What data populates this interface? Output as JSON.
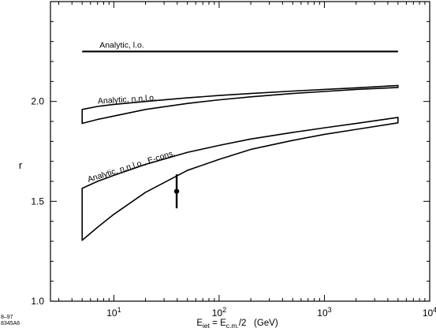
{
  "chart_data": {
    "type": "line",
    "title": "",
    "ylabel": "r",
    "xlabel": {
      "main": "E",
      "sub1": "jet",
      "mid": " = E",
      "sub2": "c.m.",
      "tail": "/2",
      "unit": "(GeV)"
    },
    "xscale": "log",
    "xlim": [
      2.5,
      10000
    ],
    "ylim": [
      1.0,
      2.5
    ],
    "grid": false,
    "x_ticks": [
      {
        "value": 10,
        "mantissa": "10",
        "exp": "1"
      },
      {
        "value": 100,
        "mantissa": "10",
        "exp": "2"
      },
      {
        "value": 1000,
        "mantissa": "10",
        "exp": "3"
      },
      {
        "value": 10000,
        "mantissa": "10",
        "exp": "4"
      }
    ],
    "y_ticks": [
      {
        "value": 1.0,
        "label": "1.0"
      },
      {
        "value": 1.5,
        "label": "1.5"
      },
      {
        "value": 2.0,
        "label": "2.0"
      }
    ],
    "series": [
      {
        "name": "Analytic, l.o.",
        "kind": "line",
        "x": [
          5,
          5000
        ],
        "y": [
          2.25,
          2.25
        ]
      },
      {
        "name": "Analytic, n.n.l.o.",
        "kind": "band",
        "x": [
          5,
          7,
          10,
          20,
          50,
          100,
          200,
          500,
          1000,
          2000,
          5000
        ],
        "y_upper": [
          1.96,
          1.975,
          1.985,
          2.0,
          2.018,
          2.03,
          2.04,
          2.052,
          2.06,
          2.068,
          2.08
        ],
        "y_lower": [
          1.89,
          1.91,
          1.927,
          1.96,
          1.99,
          2.008,
          2.023,
          2.04,
          2.05,
          2.06,
          2.07
        ]
      },
      {
        "name": "Analytic, n.n.l.o., E-cons.",
        "kind": "band",
        "x": [
          5,
          7,
          10,
          20,
          50,
          100,
          200,
          500,
          1000,
          2000,
          5000
        ],
        "y_upper": [
          1.565,
          1.6,
          1.63,
          1.685,
          1.745,
          1.78,
          1.812,
          1.845,
          1.868,
          1.89,
          1.92
        ],
        "y_lower": [
          1.305,
          1.37,
          1.435,
          1.545,
          1.655,
          1.71,
          1.76,
          1.805,
          1.835,
          1.86,
          1.893
        ]
      },
      {
        "name": "data",
        "kind": "point",
        "x": [
          39.5
        ],
        "y": [
          1.55
        ],
        "y_err_low": [
          1.465
        ],
        "y_err_high": [
          1.635
        ]
      }
    ]
  },
  "corner_note": {
    "line1": "8–97",
    "line2": "8345A6"
  }
}
